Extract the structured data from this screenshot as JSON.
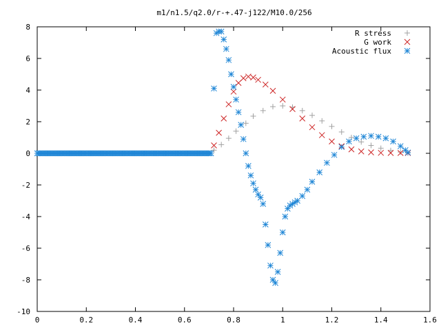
{
  "chart_data": {
    "type": "scatter",
    "title": "m1/n1.5/q2.0/r-+.47-j122/M10.0/256",
    "xlabel": "",
    "ylabel": "",
    "xlim": [
      0,
      1.6
    ],
    "ylim": [
      -10,
      8
    ],
    "xticks": [
      "0",
      "0.2",
      "0.4",
      "0.6",
      "0.8",
      "1",
      "1.2",
      "1.4",
      "1.6"
    ],
    "yticks": [
      "8",
      "6",
      "4",
      "2",
      "0",
      "-2",
      "-4",
      "-6",
      "-8",
      "-10"
    ],
    "grid": false,
    "legend_position": "top-right",
    "series": [
      {
        "name": "R stress",
        "marker": "plus",
        "color": "#a0a0a0",
        "x": [
          0.72,
          0.75,
          0.78,
          0.81,
          0.85,
          0.88,
          0.92,
          0.96,
          1.0,
          1.04,
          1.08,
          1.12,
          1.16,
          1.2,
          1.24,
          1.28,
          1.32,
          1.36,
          1.4,
          1.44,
          1.48,
          1.51
        ],
        "y": [
          0.2,
          0.55,
          0.95,
          1.4,
          1.9,
          2.35,
          2.7,
          2.95,
          3.0,
          2.92,
          2.7,
          2.4,
          2.05,
          1.7,
          1.35,
          1.0,
          0.72,
          0.5,
          0.32,
          0.18,
          0.08,
          0.02
        ]
      },
      {
        "name": "G work",
        "marker": "cross",
        "color": "#cc2222",
        "x": [
          0.72,
          0.74,
          0.76,
          0.78,
          0.8,
          0.82,
          0.84,
          0.86,
          0.88,
          0.9,
          0.93,
          0.96,
          1.0,
          1.04,
          1.08,
          1.12,
          1.16,
          1.2,
          1.24,
          1.28,
          1.32,
          1.36,
          1.4,
          1.44,
          1.48,
          1.51
        ],
        "y": [
          0.5,
          1.3,
          2.2,
          3.1,
          3.9,
          4.45,
          4.75,
          4.85,
          4.8,
          4.65,
          4.35,
          3.95,
          3.4,
          2.8,
          2.2,
          1.65,
          1.15,
          0.75,
          0.45,
          0.25,
          0.12,
          0.06,
          0.03,
          0.02,
          0.02,
          0.02
        ]
      },
      {
        "name": "Acoustic flux",
        "marker": "star",
        "color": "#1f86d6",
        "x": [
          0.72,
          0.73,
          0.74,
          0.75,
          0.76,
          0.77,
          0.78,
          0.79,
          0.8,
          0.81,
          0.82,
          0.83,
          0.84,
          0.85,
          0.86,
          0.87,
          0.88,
          0.89,
          0.9,
          0.91,
          0.92,
          0.93,
          0.94,
          0.95,
          0.96,
          0.97,
          0.98,
          0.99,
          1.0,
          1.01,
          1.02,
          1.03,
          1.04,
          1.05,
          1.06,
          1.08,
          1.1,
          1.12,
          1.15,
          1.18,
          1.21,
          1.24,
          1.27,
          1.3,
          1.33,
          1.36,
          1.39,
          1.42,
          1.45,
          1.48,
          1.5,
          1.51
        ],
        "y": [
          4.1,
          7.6,
          7.7,
          7.7,
          7.2,
          6.6,
          5.9,
          5.0,
          4.2,
          3.4,
          2.6,
          1.8,
          0.9,
          0.0,
          -0.8,
          -1.4,
          -1.9,
          -2.3,
          -2.6,
          -2.8,
          -3.2,
          -4.5,
          -5.8,
          -7.1,
          -8.0,
          -8.2,
          -7.5,
          -6.3,
          -5.0,
          -4.0,
          -3.5,
          -3.3,
          -3.2,
          -3.1,
          -3.0,
          -2.7,
          -2.3,
          -1.8,
          -1.2,
          -0.6,
          -0.1,
          0.4,
          0.75,
          0.95,
          1.05,
          1.1,
          1.05,
          0.95,
          0.75,
          0.45,
          0.2,
          0.05
        ]
      }
    ]
  }
}
